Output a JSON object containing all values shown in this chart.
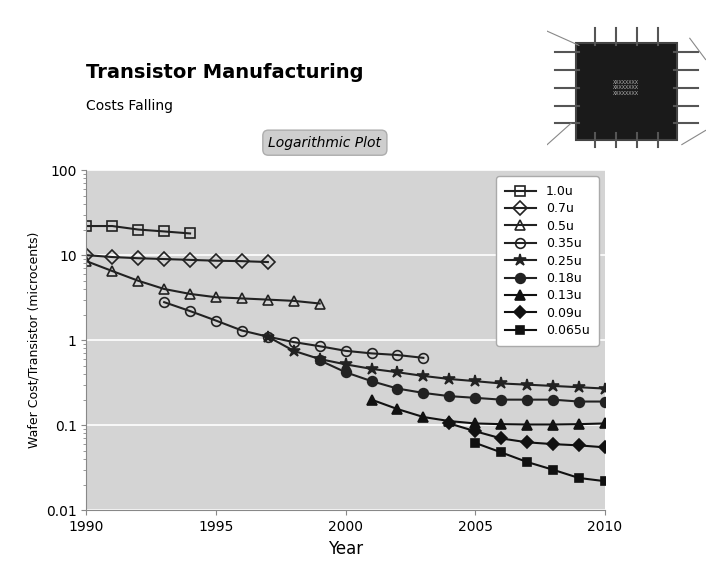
{
  "title": "Transistor Manufacturing",
  "subtitle": "Costs Falling",
  "xlabel": "Year",
  "ylabel": "Wafer Cost/Transistor (microcents)",
  "log_label": "Logarithmic Plot",
  "bg_color": "#d4d4d4",
  "fig_bg": "#ffffff",
  "xlim": [
    1990,
    2010
  ],
  "ylim": [
    0.01,
    100
  ],
  "series": [
    {
      "label": "1.0u",
      "marker": "s",
      "fillstyle": "none",
      "color": "#222222",
      "markersize": 7,
      "x": [
        1990,
        1991,
        1992,
        1993,
        1994
      ],
      "y": [
        22,
        22,
        20,
        19,
        18
      ]
    },
    {
      "label": "0.7u",
      "marker": "D",
      "fillstyle": "none",
      "color": "#222222",
      "markersize": 7,
      "x": [
        1990,
        1991,
        1992,
        1993,
        1994,
        1995,
        1996,
        1997
      ],
      "y": [
        10,
        9.5,
        9.2,
        9.0,
        8.8,
        8.6,
        8.5,
        8.3
      ]
    },
    {
      "label": "0.5u",
      "marker": "^",
      "fillstyle": "none",
      "color": "#222222",
      "markersize": 7,
      "x": [
        1990,
        1991,
        1992,
        1993,
        1994,
        1995,
        1996,
        1997,
        1998,
        1999
      ],
      "y": [
        8.5,
        6.5,
        5.0,
        4.0,
        3.5,
        3.2,
        3.1,
        3.0,
        2.9,
        2.7
      ]
    },
    {
      "label": "0.35u",
      "marker": "o",
      "fillstyle": "none",
      "color": "#222222",
      "markersize": 7,
      "x": [
        1993,
        1994,
        1995,
        1996,
        1997,
        1998,
        1999,
        2000,
        2001,
        2002,
        2003
      ],
      "y": [
        2.8,
        2.2,
        1.7,
        1.3,
        1.1,
        0.95,
        0.85,
        0.75,
        0.7,
        0.67,
        0.62
      ]
    },
    {
      "label": "0.25u",
      "marker": "*",
      "fillstyle": "full",
      "color": "#222222",
      "markersize": 9,
      "x": [
        1997,
        1998,
        1999,
        2000,
        2001,
        2002,
        2003,
        2004,
        2005,
        2006,
        2007,
        2008,
        2009,
        2010
      ],
      "y": [
        1.1,
        0.75,
        0.6,
        0.52,
        0.46,
        0.42,
        0.38,
        0.35,
        0.33,
        0.31,
        0.3,
        0.29,
        0.28,
        0.27
      ]
    },
    {
      "label": "0.18u",
      "marker": "o",
      "fillstyle": "full",
      "color": "#222222",
      "markersize": 7,
      "x": [
        1999,
        2000,
        2001,
        2002,
        2003,
        2004,
        2005,
        2006,
        2007,
        2008,
        2009,
        2010
      ],
      "y": [
        0.58,
        0.42,
        0.33,
        0.27,
        0.24,
        0.22,
        0.21,
        0.2,
        0.2,
        0.2,
        0.19,
        0.19
      ]
    },
    {
      "label": "0.13u",
      "marker": "^",
      "fillstyle": "full",
      "color": "#111111",
      "markersize": 7,
      "x": [
        2001,
        2002,
        2003,
        2004,
        2005,
        2006,
        2007,
        2008,
        2009,
        2010
      ],
      "y": [
        0.2,
        0.155,
        0.125,
        0.112,
        0.105,
        0.103,
        0.102,
        0.102,
        0.103,
        0.105
      ]
    },
    {
      "label": "0.09u",
      "marker": "D",
      "fillstyle": "full",
      "color": "#111111",
      "markersize": 6,
      "x": [
        2004,
        2005,
        2006,
        2007,
        2008,
        2009,
        2010
      ],
      "y": [
        0.105,
        0.085,
        0.07,
        0.063,
        0.06,
        0.058,
        0.055
      ]
    },
    {
      "label": "0.065u",
      "marker": "s",
      "fillstyle": "full",
      "color": "#111111",
      "markersize": 6,
      "x": [
        2005,
        2006,
        2007,
        2008,
        2009,
        2010
      ],
      "y": [
        0.062,
        0.048,
        0.037,
        0.03,
        0.024,
        0.022
      ]
    }
  ]
}
